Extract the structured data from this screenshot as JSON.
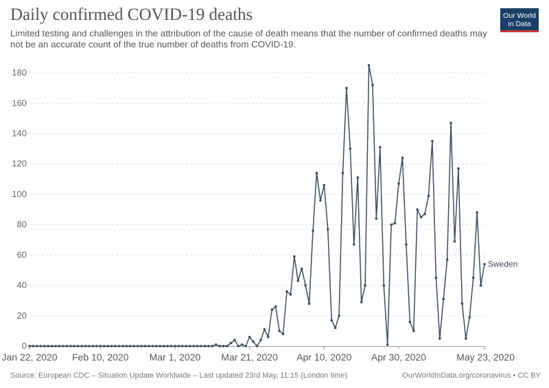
{
  "header": {
    "title": "Daily confirmed COVID-19 deaths",
    "subtitle": "Limited testing and challenges in the attribution of the cause of death means that the number of confirmed deaths may not be an accurate count of the true number of deaths from COVID-19."
  },
  "logo": {
    "line1": "Our World",
    "line2": "in Data"
  },
  "footer": {
    "source": "Source: European CDC – Situation Update Worldwide – Last updated 23rd May, 11:15 (London time)",
    "credit": "OurWorldInData.org/coronavirus • CC BY"
  },
  "colors": {
    "series": "#3d4b5c",
    "grid": "#dddddd",
    "logo_bg": "#1a3e66",
    "logo_accent": "#c93a3a"
  },
  "chart_data": {
    "type": "line",
    "title": "Daily confirmed COVID-19 deaths",
    "xlabel": "",
    "ylabel": "",
    "x_start": "2020-01-22",
    "x_end": "2020-05-23",
    "ylim": [
      0,
      185
    ],
    "grid": true,
    "y_ticks": [
      0,
      20,
      40,
      60,
      80,
      100,
      120,
      140,
      160,
      180
    ],
    "x_ticks": [
      {
        "date": "2020-01-22",
        "label": "Jan 22, 2020"
      },
      {
        "date": "2020-02-10",
        "label": "Feb 10, 2020"
      },
      {
        "date": "2020-03-01",
        "label": "Mar 1, 2020"
      },
      {
        "date": "2020-03-21",
        "label": "Mar 21, 2020"
      },
      {
        "date": "2020-04-10",
        "label": "Apr 10, 2020"
      },
      {
        "date": "2020-04-30",
        "label": "Apr 30, 2020"
      },
      {
        "date": "2020-05-23",
        "label": "May 23, 2020"
      }
    ],
    "series": [
      {
        "name": "Sweden",
        "values": [
          0,
          0,
          0,
          0,
          0,
          0,
          0,
          0,
          0,
          0,
          0,
          0,
          0,
          0,
          0,
          0,
          0,
          0,
          0,
          0,
          0,
          0,
          0,
          0,
          0,
          0,
          0,
          0,
          0,
          0,
          0,
          0,
          0,
          0,
          0,
          0,
          0,
          0,
          0,
          0,
          0,
          0,
          0,
          0,
          0,
          0,
          0,
          0,
          0,
          0,
          1,
          0,
          0,
          0,
          2,
          4,
          0,
          1,
          0,
          6,
          3,
          0,
          4,
          11,
          6,
          24,
          26,
          10,
          8,
          36,
          34,
          59,
          43,
          51,
          40,
          28,
          76,
          114,
          96,
          106,
          77,
          17,
          12,
          20,
          114,
          170,
          130,
          67,
          111,
          29,
          40,
          185,
          172,
          84,
          131,
          40,
          1,
          80,
          81,
          107,
          124,
          67,
          16,
          10,
          90,
          85,
          87,
          99,
          135,
          45,
          5,
          31,
          57,
          147,
          69,
          117,
          28,
          5,
          19,
          45,
          88,
          40,
          54
        ]
      }
    ]
  }
}
